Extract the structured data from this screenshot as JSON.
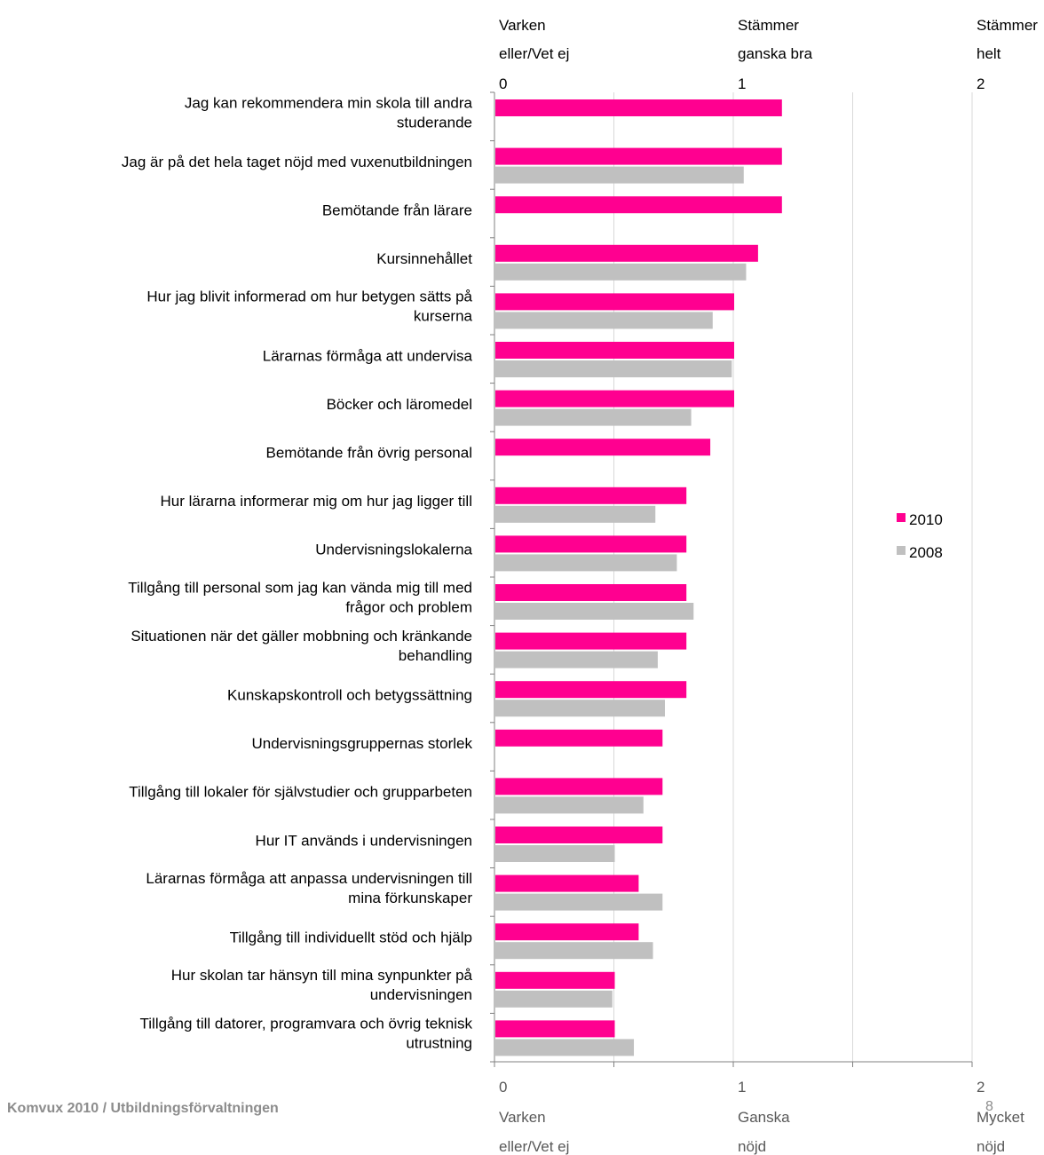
{
  "chart_data": {
    "type": "bar",
    "orientation": "horizontal",
    "categories": [
      "Jag kan rekommendera min skola till andra studerande",
      "Jag är på det hela taget nöjd med vuxenutbildningen",
      "Bemötande från lärare",
      "Kursinnehållet",
      "Hur jag blivit informerad om hur betygen sätts på kurserna",
      "Lärarnas förmåga att undervisa",
      "Böcker och läromedel",
      "Bemötande från övrig personal",
      "Hur lärarna informerar mig om hur jag ligger till",
      "Undervisningslokalerna",
      "Tillgång till personal som jag kan vända mig till med frågor och problem",
      "Situationen när det gäller mobbning och kränkande behandling",
      "Kunskapskontroll och betygssättning",
      "Undervisningsgruppernas storlek",
      "Tillgång till lokaler för självstudier och grupparbeten",
      "Hur IT används i undervisningen",
      "Lärarnas förmåga att anpassa undervisningen till mina förkunskaper",
      "Tillgång till individuellt stöd och hjälp",
      "Hur skolan tar hänsyn till mina synpunkter på undervisningen",
      "Tillgång till datorer, programvara och övrig teknisk utrustning"
    ],
    "category_lines": [
      [
        "Jag kan rekommendera min skola till andra",
        "studerande"
      ],
      [
        "Jag är på det hela taget nöjd med vuxenutbildningen"
      ],
      [
        "Bemötande från lärare"
      ],
      [
        "Kursinnehållet"
      ],
      [
        "Hur jag blivit informerad om hur betygen sätts på",
        "kurserna"
      ],
      [
        "Lärarnas förmåga att undervisa"
      ],
      [
        "Böcker och läromedel"
      ],
      [
        "Bemötande från övrig personal"
      ],
      [
        "Hur lärarna informerar mig om hur jag ligger till"
      ],
      [
        "Undervisningslokalerna"
      ],
      [
        "Tillgång till personal som jag kan vända mig till med",
        "frågor och problem"
      ],
      [
        "Situationen när det gäller mobbning och kränkande",
        "behandling"
      ],
      [
        "Kunskapskontroll och betygssättning"
      ],
      [
        "Undervisningsgruppernas storlek"
      ],
      [
        "Tillgång till lokaler för självstudier och grupparbeten"
      ],
      [
        "Hur IT används i undervisningen"
      ],
      [
        "Lärarnas förmåga att anpassa undervisningen till",
        "mina förkunskaper"
      ],
      [
        "Tillgång till individuellt stöd och hjälp"
      ],
      [
        "Hur skolan tar hänsyn till mina synpunkter på",
        "undervisningen"
      ],
      [
        "Tillgång till datorer, programvara och övrig teknisk",
        "utrustning"
      ]
    ],
    "series": [
      {
        "name": "2010",
        "color": "#ff0090",
        "values": [
          1.2,
          1.2,
          1.2,
          1.1,
          1.0,
          1.0,
          1.0,
          0.9,
          0.8,
          0.8,
          0.8,
          0.8,
          0.8,
          0.7,
          0.7,
          0.7,
          0.6,
          0.6,
          0.5,
          0.5
        ]
      },
      {
        "name": "2008",
        "color": "#c0c0c0",
        "values": [
          null,
          1.04,
          null,
          1.05,
          0.91,
          0.99,
          0.82,
          null,
          0.67,
          0.76,
          0.83,
          0.68,
          0.71,
          null,
          0.62,
          0.5,
          0.7,
          0.66,
          0.49,
          0.58
        ]
      }
    ],
    "xlim": [
      0,
      2
    ],
    "grid": true,
    "legend_position": "right",
    "top_axis": {
      "ticks": [
        {
          "value": 0,
          "lines": [
            "Varken",
            "eller/Vet ej",
            "0"
          ]
        },
        {
          "value": 1,
          "lines": [
            "Stämmer",
            "ganska bra",
            "1"
          ]
        },
        {
          "value": 2,
          "lines": [
            "Stämmer",
            "helt",
            "2"
          ]
        }
      ]
    },
    "bottom_axis": {
      "ticks": [
        {
          "value": 0,
          "lines": [
            "0",
            "Varken",
            "eller/Vet ej"
          ]
        },
        {
          "value": 1,
          "lines": [
            "1",
            "Ganska",
            "nöjd"
          ]
        },
        {
          "value": 2,
          "lines": [
            "2",
            "Mycket",
            "nöjd"
          ]
        }
      ]
    }
  },
  "footer": {
    "source": "Komvux 2010 / Utbildningsförvaltningen",
    "page_number": "8"
  }
}
